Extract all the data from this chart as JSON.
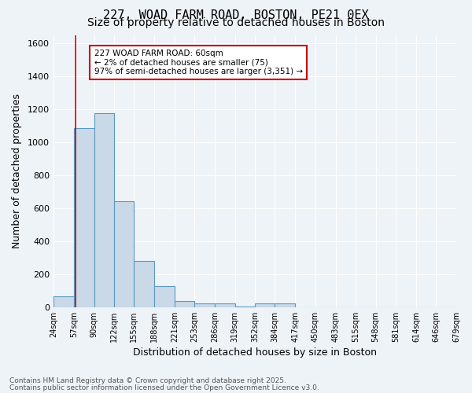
{
  "title1": "227, WOAD FARM ROAD, BOSTON, PE21 0EX",
  "title2": "Size of property relative to detached houses in Boston",
  "xlabel": "Distribution of detached houses by size in Boston",
  "ylabel": "Number of detached properties",
  "bar_color": "#c9d9e8",
  "bar_edge_color": "#5a9abf",
  "bin_edges": [
    24,
    57,
    90,
    122,
    155,
    188,
    221,
    253,
    286,
    319,
    352,
    384,
    417,
    450,
    483,
    515,
    548,
    581,
    614,
    646,
    679
  ],
  "bar_heights": [
    65,
    1085,
    1180,
    645,
    280,
    130,
    38,
    22,
    22,
    5,
    22,
    22,
    0,
    0,
    0,
    0,
    0,
    0,
    0,
    0
  ],
  "tick_labels": [
    "24sqm",
    "57sqm",
    "90sqm",
    "122sqm",
    "155sqm",
    "188sqm",
    "221sqm",
    "253sqm",
    "286sqm",
    "319sqm",
    "352sqm",
    "384sqm",
    "417sqm",
    "450sqm",
    "483sqm",
    "515sqm",
    "548sqm",
    "581sqm",
    "614sqm",
    "646sqm",
    "679sqm"
  ],
  "vline_x": 60,
  "vline_color": "#cc0000",
  "ylim": [
    0,
    1650
  ],
  "yticks": [
    0,
    200,
    400,
    600,
    800,
    1000,
    1200,
    1400,
    1600
  ],
  "annotation_title": "227 WOAD FARM ROAD: 60sqm",
  "annotation_line2": "← 2% of detached houses are smaller (75)",
  "annotation_line3": "97% of semi-detached houses are larger (3,351) →",
  "footnote1": "Contains HM Land Registry data © Crown copyright and database right 2025.",
  "footnote2": "Contains public sector information licensed under the Open Government Licence v3.0.",
  "bg_color": "#eef3f8",
  "plot_bg_color": "#eef3f8",
  "grid_color": "#ffffff",
  "title_fontsize": 11,
  "subtitle_fontsize": 10
}
